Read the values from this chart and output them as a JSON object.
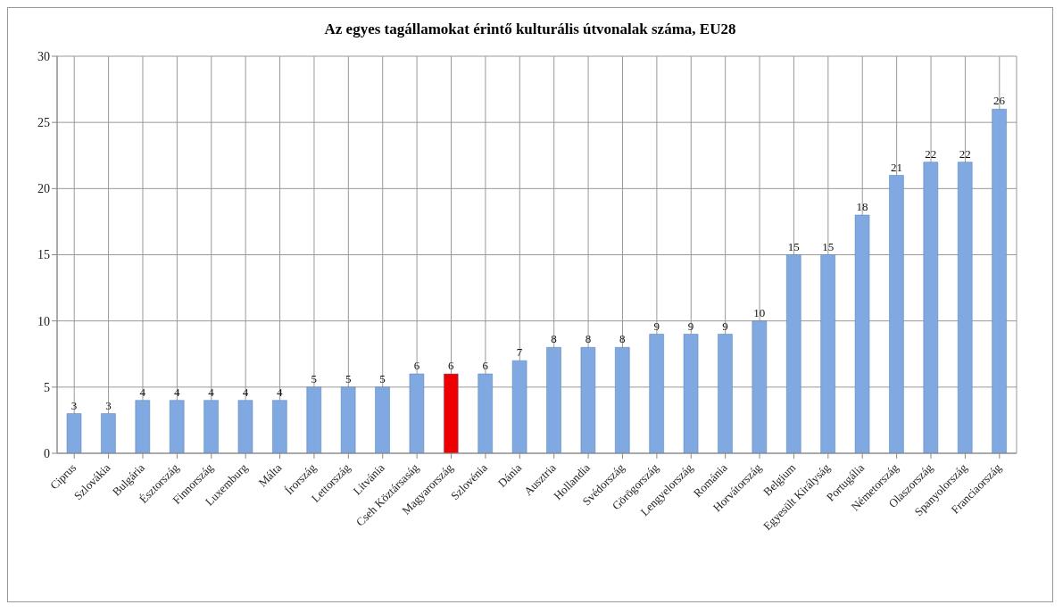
{
  "chart_data": {
    "type": "bar",
    "title": "Az egyes tagállamokat érintő kulturális útvonalak száma, EU28",
    "categories": [
      "Ciprus",
      "Szlovákia",
      "Bulgária",
      "Észtország",
      "Finnország",
      "Luxemburg",
      "Málta",
      "Írország",
      "Lettország",
      "Litvánia",
      "Cseh Köztársaság",
      "Magyarország",
      "Szlovénia",
      "Dánia",
      "Ausztria",
      "Hollandia",
      "Svédország",
      "Görögország",
      "Lengyelország",
      "Románia",
      "Horvátország",
      "Belgium",
      "Egyesült Királyság",
      "Portugália",
      "Németország",
      "Olaszország",
      "Spanyolország",
      "Franciaország"
    ],
    "values": [
      3,
      3,
      4,
      4,
      4,
      4,
      4,
      5,
      5,
      5,
      6,
      6,
      6,
      7,
      8,
      8,
      8,
      9,
      9,
      9,
      10,
      15,
      15,
      18,
      21,
      22,
      22,
      26
    ],
    "colors": [
      "#7fa9e0",
      "#7fa9e0",
      "#7fa9e0",
      "#7fa9e0",
      "#7fa9e0",
      "#7fa9e0",
      "#7fa9e0",
      "#7fa9e0",
      "#7fa9e0",
      "#7fa9e0",
      "#7fa9e0",
      "#ee0000",
      "#7fa9e0",
      "#7fa9e0",
      "#7fa9e0",
      "#7fa9e0",
      "#7fa9e0",
      "#7fa9e0",
      "#7fa9e0",
      "#7fa9e0",
      "#7fa9e0",
      "#7fa9e0",
      "#7fa9e0",
      "#7fa9e0",
      "#7fa9e0",
      "#7fa9e0",
      "#7fa9e0",
      "#7fa9e0"
    ],
    "ylim": [
      0,
      30
    ],
    "yticks": [
      0,
      5,
      10,
      15,
      20,
      25,
      30
    ],
    "grid": true,
    "data_labels": true,
    "legend": false
  }
}
